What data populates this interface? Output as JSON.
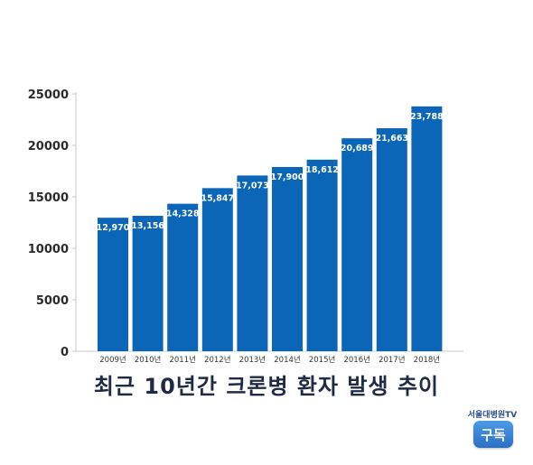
{
  "chart_data": {
    "type": "bar",
    "title": "최근 10년간 크론병 환자 발생 추이",
    "categories": [
      "2009년",
      "2010년",
      "2011년",
      "2012년",
      "2013년",
      "2014년",
      "2015년",
      "2016년",
      "2017년",
      "2018년"
    ],
    "values": [
      12970,
      13156,
      14328,
      15847,
      17073,
      17900,
      18612,
      20689,
      21663,
      23788
    ],
    "value_labels": [
      "12,970",
      "13,156",
      "14,328",
      "15,847",
      "17,073",
      "17,900",
      "18,612",
      "20,689",
      "21,663",
      "23,788"
    ],
    "ylim": [
      0,
      25000
    ],
    "yticks": [
      "0",
      "5000",
      "10000",
      "15000",
      "20000",
      "25000"
    ],
    "xlabel": "",
    "ylabel": "",
    "grid": false,
    "bar_color": "#0b66b8"
  },
  "branding": {
    "channel": "서울대병원TV",
    "subscribe_label": "구독"
  }
}
